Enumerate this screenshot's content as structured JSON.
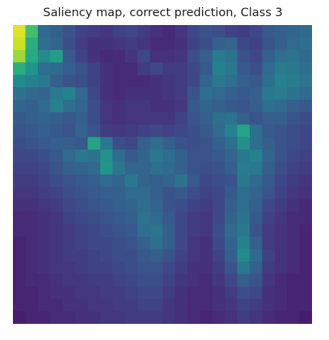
{
  "page": {
    "background": "#ffffff"
  },
  "chart_data": {
    "type": "heatmap",
    "title": "Saliency map, correct prediction, Class 3",
    "xlabel": "",
    "ylabel": "",
    "axes_visible": false,
    "colormap": "viridis",
    "colormap_stops": [
      "#440154",
      "#482878",
      "#3e4989",
      "#31688e",
      "#26828e",
      "#1f9e89",
      "#35b779",
      "#6ece58",
      "#b5de2b",
      "#fde725"
    ],
    "grid": [
      [
        0.95,
        0.7,
        0.34,
        0.3,
        0.26,
        0.2,
        0.18,
        0.16,
        0.2,
        0.22,
        0.18,
        0.14,
        0.12,
        0.16,
        0.22,
        0.26,
        0.24,
        0.2,
        0.18,
        0.22,
        0.28,
        0.3,
        0.32,
        0.34
      ],
      [
        0.92,
        0.62,
        0.36,
        0.32,
        0.24,
        0.18,
        0.14,
        0.14,
        0.16,
        0.18,
        0.16,
        0.12,
        0.12,
        0.14,
        0.2,
        0.24,
        0.3,
        0.32,
        0.22,
        0.2,
        0.26,
        0.3,
        0.34,
        0.36
      ],
      [
        0.85,
        0.6,
        0.48,
        0.56,
        0.28,
        0.2,
        0.14,
        0.12,
        0.12,
        0.16,
        0.22,
        0.14,
        0.14,
        0.16,
        0.24,
        0.3,
        0.42,
        0.38,
        0.26,
        0.22,
        0.3,
        0.36,
        0.38,
        0.34
      ],
      [
        0.62,
        0.52,
        0.36,
        0.34,
        0.3,
        0.26,
        0.2,
        0.14,
        0.12,
        0.12,
        0.18,
        0.22,
        0.18,
        0.18,
        0.22,
        0.28,
        0.44,
        0.4,
        0.28,
        0.24,
        0.34,
        0.42,
        0.4,
        0.36
      ],
      [
        0.48,
        0.44,
        0.4,
        0.3,
        0.26,
        0.24,
        0.2,
        0.14,
        0.12,
        0.12,
        0.12,
        0.14,
        0.16,
        0.18,
        0.22,
        0.32,
        0.4,
        0.36,
        0.3,
        0.28,
        0.36,
        0.44,
        0.42,
        0.38
      ],
      [
        0.38,
        0.34,
        0.32,
        0.4,
        0.44,
        0.34,
        0.22,
        0.14,
        0.12,
        0.14,
        0.14,
        0.14,
        0.16,
        0.18,
        0.26,
        0.36,
        0.34,
        0.3,
        0.28,
        0.3,
        0.4,
        0.42,
        0.38,
        0.34
      ],
      [
        0.32,
        0.3,
        0.34,
        0.44,
        0.36,
        0.32,
        0.24,
        0.16,
        0.14,
        0.16,
        0.16,
        0.14,
        0.14,
        0.16,
        0.28,
        0.32,
        0.3,
        0.28,
        0.26,
        0.3,
        0.36,
        0.34,
        0.3,
        0.28
      ],
      [
        0.28,
        0.3,
        0.32,
        0.3,
        0.28,
        0.3,
        0.24,
        0.16,
        0.14,
        0.16,
        0.16,
        0.16,
        0.16,
        0.2,
        0.26,
        0.3,
        0.36,
        0.38,
        0.3,
        0.26,
        0.3,
        0.3,
        0.26,
        0.24
      ],
      [
        0.26,
        0.28,
        0.3,
        0.28,
        0.26,
        0.32,
        0.26,
        0.18,
        0.16,
        0.18,
        0.2,
        0.22,
        0.2,
        0.22,
        0.24,
        0.28,
        0.34,
        0.44,
        0.58,
        0.36,
        0.28,
        0.26,
        0.24,
        0.22
      ],
      [
        0.24,
        0.26,
        0.28,
        0.3,
        0.3,
        0.28,
        0.58,
        0.4,
        0.24,
        0.22,
        0.3,
        0.36,
        0.3,
        0.26,
        0.24,
        0.26,
        0.3,
        0.36,
        0.5,
        0.36,
        0.3,
        0.26,
        0.24,
        0.22
      ],
      [
        0.22,
        0.22,
        0.24,
        0.28,
        0.34,
        0.4,
        0.38,
        0.5,
        0.36,
        0.28,
        0.32,
        0.4,
        0.36,
        0.3,
        0.26,
        0.26,
        0.28,
        0.32,
        0.4,
        0.44,
        0.32,
        0.26,
        0.22,
        0.2
      ],
      [
        0.2,
        0.2,
        0.22,
        0.26,
        0.3,
        0.32,
        0.34,
        0.52,
        0.4,
        0.32,
        0.32,
        0.36,
        0.34,
        0.3,
        0.26,
        0.24,
        0.26,
        0.3,
        0.42,
        0.4,
        0.3,
        0.24,
        0.2,
        0.18
      ],
      [
        0.18,
        0.18,
        0.2,
        0.24,
        0.26,
        0.28,
        0.3,
        0.34,
        0.32,
        0.4,
        0.32,
        0.3,
        0.32,
        0.38,
        0.28,
        0.22,
        0.24,
        0.26,
        0.4,
        0.34,
        0.28,
        0.22,
        0.18,
        0.16
      ],
      [
        0.16,
        0.16,
        0.18,
        0.2,
        0.24,
        0.26,
        0.28,
        0.3,
        0.3,
        0.34,
        0.34,
        0.3,
        0.26,
        0.28,
        0.24,
        0.2,
        0.22,
        0.28,
        0.36,
        0.32,
        0.26,
        0.2,
        0.16,
        0.14
      ],
      [
        0.14,
        0.14,
        0.16,
        0.18,
        0.22,
        0.24,
        0.26,
        0.28,
        0.3,
        0.32,
        0.36,
        0.32,
        0.26,
        0.24,
        0.2,
        0.18,
        0.22,
        0.3,
        0.36,
        0.3,
        0.22,
        0.18,
        0.14,
        0.12
      ],
      [
        0.12,
        0.12,
        0.14,
        0.16,
        0.2,
        0.22,
        0.24,
        0.26,
        0.28,
        0.3,
        0.38,
        0.34,
        0.28,
        0.22,
        0.18,
        0.16,
        0.22,
        0.32,
        0.38,
        0.28,
        0.2,
        0.16,
        0.12,
        0.12
      ],
      [
        0.12,
        0.12,
        0.14,
        0.16,
        0.18,
        0.2,
        0.22,
        0.24,
        0.26,
        0.28,
        0.36,
        0.38,
        0.3,
        0.22,
        0.18,
        0.16,
        0.24,
        0.34,
        0.4,
        0.26,
        0.18,
        0.14,
        0.12,
        0.1
      ],
      [
        0.1,
        0.12,
        0.14,
        0.16,
        0.18,
        0.2,
        0.22,
        0.22,
        0.24,
        0.26,
        0.3,
        0.36,
        0.3,
        0.22,
        0.16,
        0.14,
        0.22,
        0.32,
        0.44,
        0.3,
        0.18,
        0.14,
        0.12,
        0.1
      ],
      [
        0.1,
        0.12,
        0.14,
        0.16,
        0.18,
        0.18,
        0.2,
        0.22,
        0.24,
        0.24,
        0.28,
        0.3,
        0.26,
        0.2,
        0.16,
        0.14,
        0.2,
        0.3,
        0.48,
        0.34,
        0.2,
        0.14,
        0.12,
        0.1
      ],
      [
        0.1,
        0.12,
        0.14,
        0.16,
        0.16,
        0.18,
        0.2,
        0.2,
        0.22,
        0.24,
        0.26,
        0.26,
        0.22,
        0.18,
        0.14,
        0.14,
        0.18,
        0.26,
        0.4,
        0.3,
        0.18,
        0.14,
        0.12,
        0.1
      ],
      [
        0.1,
        0.12,
        0.12,
        0.14,
        0.16,
        0.16,
        0.18,
        0.18,
        0.2,
        0.22,
        0.24,
        0.24,
        0.2,
        0.16,
        0.14,
        0.12,
        0.16,
        0.22,
        0.3,
        0.26,
        0.16,
        0.12,
        0.1,
        0.1
      ],
      [
        0.1,
        0.1,
        0.12,
        0.14,
        0.14,
        0.16,
        0.16,
        0.18,
        0.18,
        0.2,
        0.22,
        0.22,
        0.18,
        0.14,
        0.12,
        0.12,
        0.14,
        0.18,
        0.24,
        0.22,
        0.14,
        0.12,
        0.1,
        0.1
      ],
      [
        0.1,
        0.1,
        0.12,
        0.12,
        0.14,
        0.14,
        0.16,
        0.16,
        0.18,
        0.18,
        0.2,
        0.2,
        0.16,
        0.14,
        0.12,
        0.12,
        0.14,
        0.16,
        0.2,
        0.18,
        0.14,
        0.12,
        0.1,
        0.1
      ],
      [
        0.08,
        0.1,
        0.1,
        0.12,
        0.12,
        0.14,
        0.14,
        0.16,
        0.16,
        0.18,
        0.18,
        0.18,
        0.16,
        0.14,
        0.12,
        0.1,
        0.12,
        0.14,
        0.18,
        0.16,
        0.12,
        0.1,
        0.1,
        0.08
      ]
    ]
  }
}
